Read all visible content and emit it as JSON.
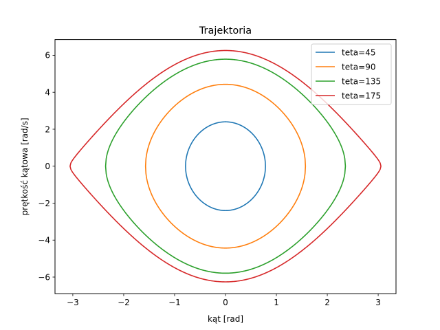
{
  "chart_data": {
    "type": "line",
    "title": "Trajektoria",
    "xlabel": "kąt [rad]",
    "ylabel": "prętkość kątowa [rad/s]",
    "xlim": [
      -3.35,
      3.35
    ],
    "ylim": [
      -6.9,
      6.85
    ],
    "xticks": [
      -3,
      -2,
      -1,
      0,
      1,
      2,
      3
    ],
    "yticks": [
      -6,
      -4,
      -2,
      0,
      2,
      4,
      6
    ],
    "grid": false,
    "legend_position": "top-right",
    "series": [
      {
        "name": "teta=45",
        "amplitude_deg": 45,
        "x_max": 0.785,
        "y_max": 2.4,
        "color": "#1f77b4"
      },
      {
        "name": "teta=90",
        "amplitude_deg": 90,
        "x_max": 1.571,
        "y_max": 4.43,
        "color": "#ff7f0e"
      },
      {
        "name": "teta=135",
        "amplitude_deg": 135,
        "x_max": 2.356,
        "y_max": 5.79,
        "color": "#2ca02c"
      },
      {
        "name": "teta=175",
        "amplitude_deg": 175,
        "x_max": 3.054,
        "y_max": 6.26,
        "color": "#d62728"
      }
    ]
  }
}
